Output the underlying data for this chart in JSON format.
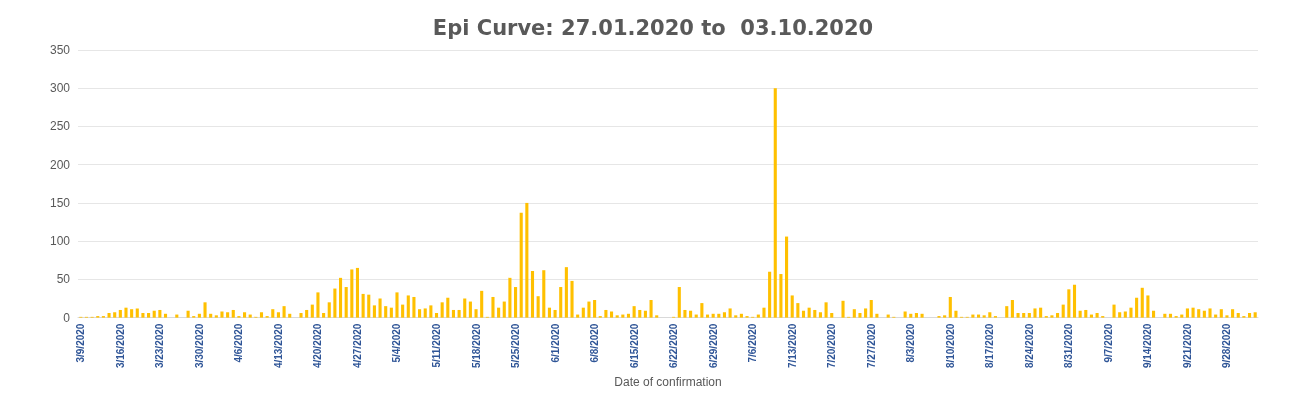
{
  "chart_data": {
    "type": "bar",
    "title": "Epi Curve: 27.01.2020 to  03.10.2020",
    "xlabel": "Date of confirmation",
    "categories": [
      "3/9/2020",
      null,
      null,
      null,
      null,
      null,
      null,
      "3/16/2020",
      null,
      null,
      null,
      null,
      null,
      null,
      "3/23/2020",
      null,
      null,
      null,
      null,
      null,
      null,
      "3/30/2020",
      null,
      null,
      null,
      null,
      null,
      null,
      "4/6/2020",
      null,
      null,
      null,
      null,
      null,
      null,
      "4/13/2020",
      null,
      null,
      null,
      null,
      null,
      null,
      "4/20/2020",
      null,
      null,
      null,
      null,
      null,
      null,
      "4/27/2020",
      null,
      null,
      null,
      null,
      null,
      null,
      "5/4/2020",
      null,
      null,
      null,
      null,
      null,
      null,
      "5/11/2020",
      null,
      null,
      null,
      null,
      null,
      null,
      "5/18/2020",
      null,
      null,
      null,
      null,
      null,
      null,
      "5/25/2020",
      null,
      null,
      null,
      null,
      null,
      null,
      "6/1/2020",
      null,
      null,
      null,
      null,
      null,
      null,
      "6/8/2020",
      null,
      null,
      null,
      null,
      null,
      null,
      "6/15/2020",
      null,
      null,
      null,
      null,
      null,
      null,
      "6/22/2020",
      null,
      null,
      null,
      null,
      null,
      null,
      "6/29/2020",
      null,
      null,
      null,
      null,
      null,
      null,
      "7/6/2020",
      null,
      null,
      null,
      null,
      null,
      null,
      "7/13/2020",
      null,
      null,
      null,
      null,
      null,
      null,
      "7/20/2020",
      null,
      null,
      null,
      null,
      null,
      null,
      "7/27/2020",
      null,
      null,
      null,
      null,
      null,
      null,
      "8/3/2020",
      null,
      null,
      null,
      null,
      null,
      null,
      "8/10/2020",
      null,
      null,
      null,
      null,
      null,
      null,
      "8/17/2020",
      null,
      null,
      null,
      null,
      null,
      null,
      "8/24/2020",
      null,
      null,
      null,
      null,
      null,
      null,
      "8/31/2020",
      null,
      null,
      null,
      null,
      null,
      null,
      "9/7/2020",
      null,
      null,
      null,
      null,
      null,
      null,
      "9/14/2020",
      null,
      null,
      null,
      null,
      null,
      null,
      "9/21/2020",
      null,
      null,
      null,
      null,
      null,
      null,
      "9/28/2020",
      null,
      null,
      null,
      null,
      null
    ],
    "values": [
      1,
      1,
      1,
      2,
      2,
      6,
      7,
      10,
      13,
      11,
      12,
      6,
      6,
      9,
      10,
      5,
      0,
      4,
      0,
      9,
      2,
      5,
      20,
      5,
      3,
      8,
      7,
      10,
      2,
      7,
      4,
      1,
      7,
      2,
      11,
      7,
      15,
      5,
      0,
      6,
      10,
      17,
      33,
      6,
      20,
      38,
      52,
      40,
      63,
      65,
      31,
      30,
      16,
      25,
      15,
      13,
      33,
      17,
      29,
      27,
      11,
      12,
      16,
      6,
      20,
      26,
      10,
      10,
      25,
      21,
      11,
      35,
      1,
      27,
      13,
      21,
      52,
      40,
      137,
      150,
      61,
      28,
      62,
      13,
      10,
      40,
      66,
      48,
      4,
      13,
      21,
      23,
      2,
      10,
      8,
      3,
      4,
      5,
      15,
      10,
      9,
      23,
      3,
      0,
      0,
      1,
      40,
      10,
      9,
      4,
      19,
      4,
      5,
      5,
      7,
      12,
      3,
      5,
      2,
      1,
      4,
      13,
      60,
      300,
      57,
      106,
      29,
      19,
      9,
      13,
      10,
      7,
      20,
      6,
      0,
      22,
      1,
      11,
      6,
      12,
      23,
      5,
      0,
      4,
      1,
      0,
      8,
      5,
      6,
      5,
      0,
      0,
      2,
      3,
      27,
      9,
      1,
      1,
      4,
      4,
      3,
      7,
      2,
      0,
      15,
      23,
      6,
      6,
      6,
      12,
      13,
      2,
      3,
      6,
      17,
      37,
      43,
      9,
      10,
      4,
      6,
      2,
      0,
      17,
      7,
      8,
      13,
      26,
      39,
      29,
      9,
      0,
      5,
      5,
      2,
      4,
      12,
      13,
      11,
      9,
      12,
      4,
      11,
      3,
      11,
      6,
      2,
      6,
      7
    ],
    "color": "#ffc000",
    "ylim": [
      0,
      350
    ],
    "yticks": [
      0,
      50,
      100,
      150,
      200,
      250,
      300,
      350
    ],
    "grid": "y"
  }
}
